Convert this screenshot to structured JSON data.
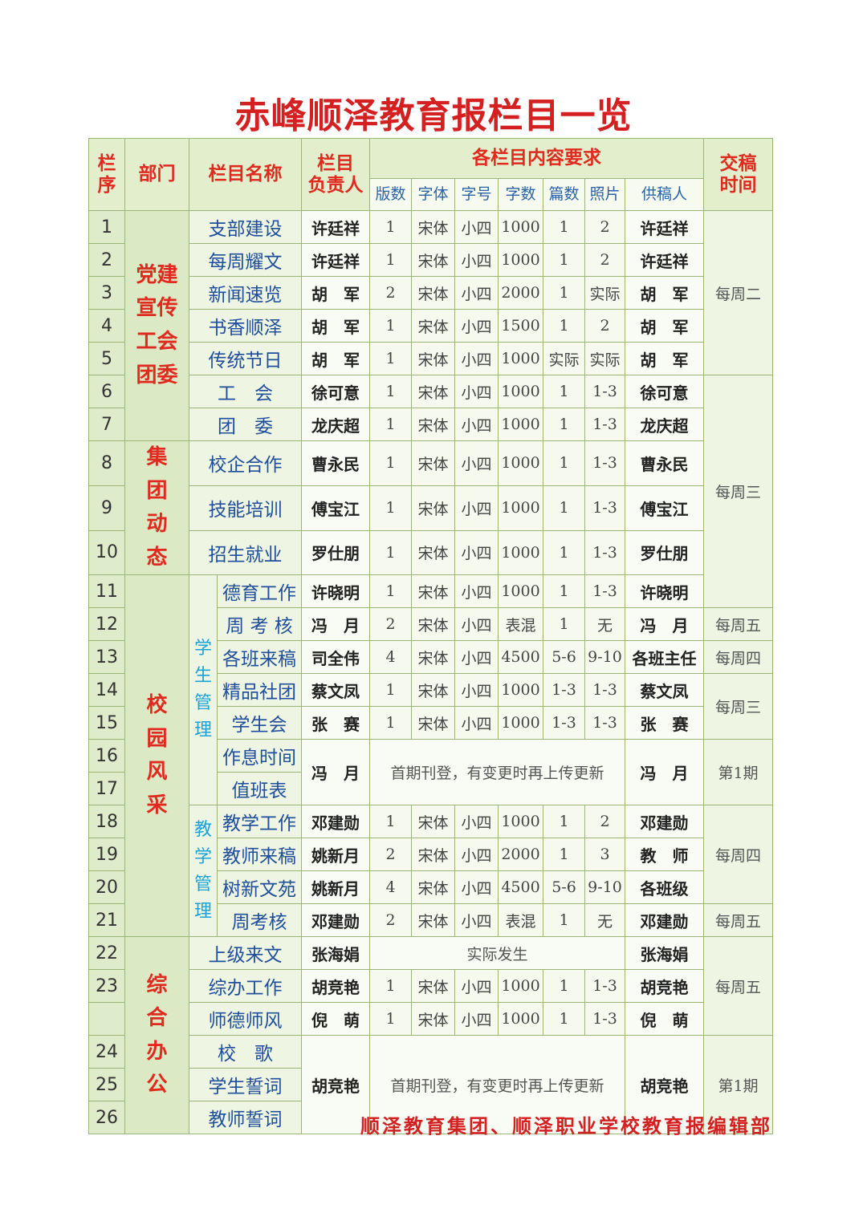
{
  "title": "赤峰顺泽教育报栏目一览",
  "headers": {
    "no": "栏\n序",
    "dept": "部门",
    "name": "栏目名称",
    "lead": "栏目\n负责人",
    "requirements": "各栏目内容要求",
    "sub": [
      "版数",
      "字体",
      "字号",
      "字数",
      "篇数",
      "照片",
      "供稿人"
    ],
    "time": "交稿\n时间"
  },
  "departments": [
    "党建\n宣传\n工会\n团委",
    "集\n团\n动\n态",
    "校\n园\n风\n采",
    "综\n合\n办\n公"
  ],
  "subdepartments": [
    "学\n生\n管\n理",
    "教\n学\n管\n理"
  ],
  "rows": [
    {
      "no": "1",
      "name": "支部建设",
      "lead": "许廷祥",
      "spec": [
        "1",
        "宋体",
        "小四",
        "1000",
        "1",
        "2"
      ],
      "supplier": "许廷祥"
    },
    {
      "no": "2",
      "name": "每周耀文",
      "lead": "许廷祥",
      "spec": [
        "1",
        "宋体",
        "小四",
        "1000",
        "1",
        "2"
      ],
      "supplier": "许廷祥"
    },
    {
      "no": "3",
      "name": "新闻速览",
      "lead": "胡　军",
      "spec": [
        "2",
        "宋体",
        "小四",
        "2000",
        "1",
        "实际"
      ],
      "supplier": "胡　军"
    },
    {
      "no": "4",
      "name": "书香顺泽",
      "lead": "胡　军",
      "spec": [
        "1",
        "宋体",
        "小四",
        "1500",
        "1",
        "2"
      ],
      "supplier": "胡　军"
    },
    {
      "no": "5",
      "name": "传统节日",
      "lead": "胡　军",
      "spec": [
        "1",
        "宋体",
        "小四",
        "1000",
        "实际",
        "实际"
      ],
      "supplier": "胡　军"
    },
    {
      "no": "6",
      "name": "工　会",
      "lead": "徐可意",
      "spec": [
        "1",
        "宋体",
        "小四",
        "1000",
        "1",
        "1-3"
      ],
      "supplier": "徐可意"
    },
    {
      "no": "7",
      "name": "团　委",
      "lead": "龙庆超",
      "spec": [
        "1",
        "宋体",
        "小四",
        "1000",
        "1",
        "1-3"
      ],
      "supplier": "龙庆超"
    },
    {
      "no": "8",
      "name": "校企合作",
      "lead": "曹永民",
      "spec": [
        "1",
        "宋体",
        "小四",
        "1000",
        "1",
        "1-3"
      ],
      "supplier": "曹永民"
    },
    {
      "no": "9",
      "name": "技能培训",
      "lead": "傅宝江",
      "spec": [
        "1",
        "宋体",
        "小四",
        "1000",
        "1",
        "1-3"
      ],
      "supplier": "傅宝江"
    },
    {
      "no": "10",
      "name": "招生就业",
      "lead": "罗仕朋",
      "spec": [
        "1",
        "宋体",
        "小四",
        "1000",
        "1",
        "1-3"
      ],
      "supplier": "罗仕朋"
    },
    {
      "no": "11",
      "name": "德育工作",
      "lead": "许晓明",
      "spec": [
        "1",
        "宋体",
        "小四",
        "1000",
        "1",
        "1-3"
      ],
      "supplier": "许晓明"
    },
    {
      "no": "12",
      "name": "周 考 核",
      "lead": "冯　月",
      "spec": [
        "2",
        "宋体",
        "小四",
        "表混",
        "1",
        "无"
      ],
      "supplier": "冯　月"
    },
    {
      "no": "13",
      "name": "各班来稿",
      "lead": "司全伟",
      "spec": [
        "4",
        "宋体",
        "小四",
        "4500",
        "5-6",
        "9-10"
      ],
      "supplier": "各班主任"
    },
    {
      "no": "14",
      "name": "精品社团",
      "lead": "蔡文凤",
      "spec": [
        "1",
        "宋体",
        "小四",
        "1000",
        "1-3",
        "1-3"
      ],
      "supplier": "蔡文凤"
    },
    {
      "no": "15",
      "name": "学生会",
      "lead": "张　赛",
      "spec": [
        "1",
        "宋体",
        "小四",
        "1000",
        "1-3",
        "1-3"
      ],
      "supplier": "张　赛"
    },
    {
      "no": "16",
      "name": "作息时间",
      "lead": "冯　月",
      "note": "首期刊登，有变更时再上传更新",
      "supplier": "冯　月"
    },
    {
      "no": "17",
      "name": "值班表"
    },
    {
      "no": "18",
      "name": "教学工作",
      "lead": "邓建勋",
      "spec": [
        "1",
        "宋体",
        "小四",
        "1000",
        "1",
        "2"
      ],
      "supplier": "邓建勋"
    },
    {
      "no": "19",
      "name": "教师来稿",
      "lead": "姚新月",
      "spec": [
        "2",
        "宋体",
        "小四",
        "2000",
        "1",
        "3"
      ],
      "supplier": "教　师"
    },
    {
      "no": "20",
      "name": "树新文苑",
      "lead": "姚新月",
      "spec": [
        "4",
        "宋体",
        "小四",
        "4500",
        "5-6",
        "9-10"
      ],
      "supplier": "各班级"
    },
    {
      "no": "21",
      "name": "周考核",
      "lead": "邓建勋",
      "spec": [
        "2",
        "宋体",
        "小四",
        "表混",
        "1",
        "无"
      ],
      "supplier": "邓建勋"
    },
    {
      "no": "22",
      "name": "上级来文",
      "lead": "张海娟",
      "note": "实际发生",
      "supplier": "张海娟"
    },
    {
      "no": "23",
      "name": "综办工作",
      "lead": "胡竞艳",
      "spec": [
        "1",
        "宋体",
        "小四",
        "1000",
        "1",
        "1-3"
      ],
      "supplier": "胡竞艳"
    },
    {
      "no": "",
      "name": "师德师风",
      "lead": "倪　萌",
      "spec": [
        "1",
        "宋体",
        "小四",
        "1000",
        "1",
        "1-3"
      ],
      "supplier": "倪　萌"
    },
    {
      "no": "24",
      "name": "校　歌",
      "lead": "胡竞艳",
      "note": "首期刊登，有变更时再上传更新",
      "supplier": "胡竞艳"
    },
    {
      "no": "25",
      "name": "学生誓词"
    },
    {
      "no": "26",
      "name": "教师誓词"
    }
  ],
  "times": [
    "每周二",
    "每周三",
    "每周五",
    "每周四",
    "每周三",
    "第1期",
    "每周四",
    "每周五",
    "每周五",
    "第1期"
  ],
  "footer": "顺泽教育集团、顺泽职业学校教育报编辑部",
  "colors": {
    "title": "#d42020",
    "header": "#e02a20",
    "column_name": "#1f4e9c",
    "subdept": "#1aa3d8",
    "cell_bg": "#eef5e2"
  }
}
